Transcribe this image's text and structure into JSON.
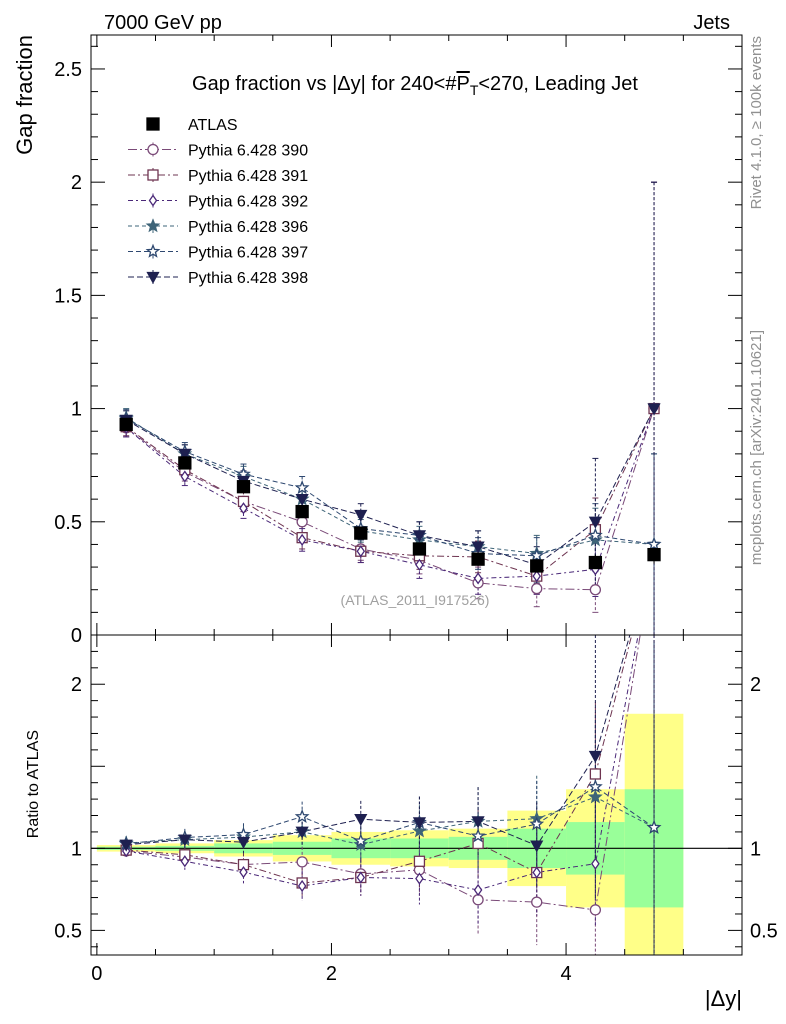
{
  "header": {
    "energy": "7000 GeV pp",
    "category": "Jets"
  },
  "side": {
    "rivet": "Rivet 4.1.0, ≥ 100k events",
    "mcplots": "mcplots.cern.ch [arXiv:2401.10621]"
  },
  "watermark": "(ATLAS_2011_I917526)",
  "colors": {
    "data": "#000000",
    "p390": "#7a4a78",
    "p391": "#6e3450",
    "p392": "#4a2878",
    "p396": "#3e6478",
    "p397": "#2e4870",
    "p398": "#1e2050",
    "band_inner": "#99ff99",
    "band_outer": "#ffff88"
  },
  "chart_data": {
    "type": "scatter",
    "title": "Gap fraction vs |Δy| for 240<#P̅T<270, Leading Jet",
    "title_parts": {
      "prefix": "Gap fraction vs |Δy| for 240<#",
      "p": "P",
      "t": "T",
      "suffix": "<270, Leading Jet"
    },
    "xlabel": "|Δy|",
    "ylabel": "Gap fraction",
    "ratio_ylabel": "Ratio to ATLAS",
    "xlim": [
      -0.05,
      5.5
    ],
    "ylim": [
      0,
      2.65
    ],
    "ratio_ylim": [
      0.35,
      2.3
    ],
    "x_ticks": [
      0,
      2,
      4
    ],
    "x_tick_labels": [
      "0",
      "2",
      "4"
    ],
    "y_ticks": [
      0,
      0.5,
      1,
      1.5,
      2,
      2.5
    ],
    "y_tick_labels": [
      "0",
      "0.5",
      "1",
      "1.5",
      "2",
      "2.5"
    ],
    "ratio_ticks": [
      0.5,
      1,
      2
    ],
    "ratio_tick_labels": [
      "0.5",
      "1",
      "2"
    ],
    "bins": [
      0,
      0.5,
      1,
      1.5,
      2,
      2.5,
      3,
      3.5,
      4,
      4.5,
      5
    ],
    "x": [
      0.25,
      0.75,
      1.25,
      1.75,
      2.25,
      2.75,
      3.25,
      3.75,
      4.25,
      4.75
    ],
    "band_inner": [
      0.01,
      0.015,
      0.03,
      0.04,
      0.06,
      0.06,
      0.07,
      0.12,
      0.16,
      0.36
    ],
    "band_outer": [
      0.02,
      0.03,
      0.05,
      0.08,
      0.1,
      0.11,
      0.12,
      0.23,
      0.36,
      0.82
    ],
    "series": [
      {
        "name": "ATLAS",
        "marker": "square-filled",
        "dash": "",
        "values": [
          0.93,
          0.76,
          0.655,
          0.545,
          0.45,
          0.38,
          0.335,
          0.305,
          0.32,
          0.355
        ],
        "errors": [
          0.02,
          0.02,
          0.025,
          0.025,
          0.025,
          0.025,
          0.03,
          0.03,
          0.035,
          0.04
        ]
      },
      {
        "name": "Pythia 6.428 390",
        "marker": "circle-open",
        "dash": "9,3,2,3",
        "values": [
          0.915,
          0.72,
          0.59,
          0.5,
          0.38,
          0.33,
          0.23,
          0.205,
          0.2,
          1.0
        ],
        "errors": [
          0.04,
          0.04,
          0.045,
          0.05,
          0.05,
          0.06,
          0.07,
          0.08,
          0.1,
          1.0
        ]
      },
      {
        "name": "Pythia 6.428 391",
        "marker": "square-open",
        "dash": "7,3,2,3",
        "values": [
          0.92,
          0.73,
          0.59,
          0.43,
          0.37,
          0.35,
          0.345,
          0.26,
          0.465,
          1.0
        ],
        "errors": [
          0.04,
          0.04,
          0.045,
          0.05,
          0.05,
          0.06,
          0.07,
          0.08,
          0.14,
          1.0
        ]
      },
      {
        "name": "Pythia 6.428 392",
        "marker": "diamond-open",
        "dash": "5,3,2,3",
        "values": [
          0.915,
          0.7,
          0.56,
          0.42,
          0.37,
          0.31,
          0.25,
          0.26,
          0.29,
          1.0
        ],
        "errors": [
          0.04,
          0.04,
          0.045,
          0.05,
          0.05,
          0.06,
          0.07,
          0.08,
          0.12,
          1.0
        ]
      },
      {
        "name": "Pythia 6.428 396",
        "marker": "star-filled",
        "dash": "4,3",
        "values": [
          0.96,
          0.8,
          0.7,
          0.6,
          0.46,
          0.42,
          0.39,
          0.36,
          0.42,
          0.4
        ],
        "errors": [
          0.04,
          0.04,
          0.045,
          0.05,
          0.05,
          0.06,
          0.07,
          0.08,
          0.14,
          0.4
        ]
      },
      {
        "name": "Pythia 6.428 397",
        "marker": "star-open",
        "dash": "5,3",
        "values": [
          0.955,
          0.81,
          0.71,
          0.65,
          0.47,
          0.44,
          0.36,
          0.35,
          0.44,
          0.4
        ],
        "errors": [
          0.04,
          0.04,
          0.045,
          0.05,
          0.05,
          0.06,
          0.07,
          0.08,
          0.14,
          0.4
        ]
      },
      {
        "name": "Pythia 6.428 398",
        "marker": "triangle-down-filled",
        "dash": "6,3",
        "values": [
          0.95,
          0.8,
          0.68,
          0.6,
          0.53,
          0.44,
          0.39,
          0.31,
          0.5,
          1.0
        ],
        "errors": [
          0.04,
          0.04,
          0.045,
          0.05,
          0.05,
          0.06,
          0.07,
          0.08,
          0.28,
          1.0
        ]
      }
    ]
  }
}
